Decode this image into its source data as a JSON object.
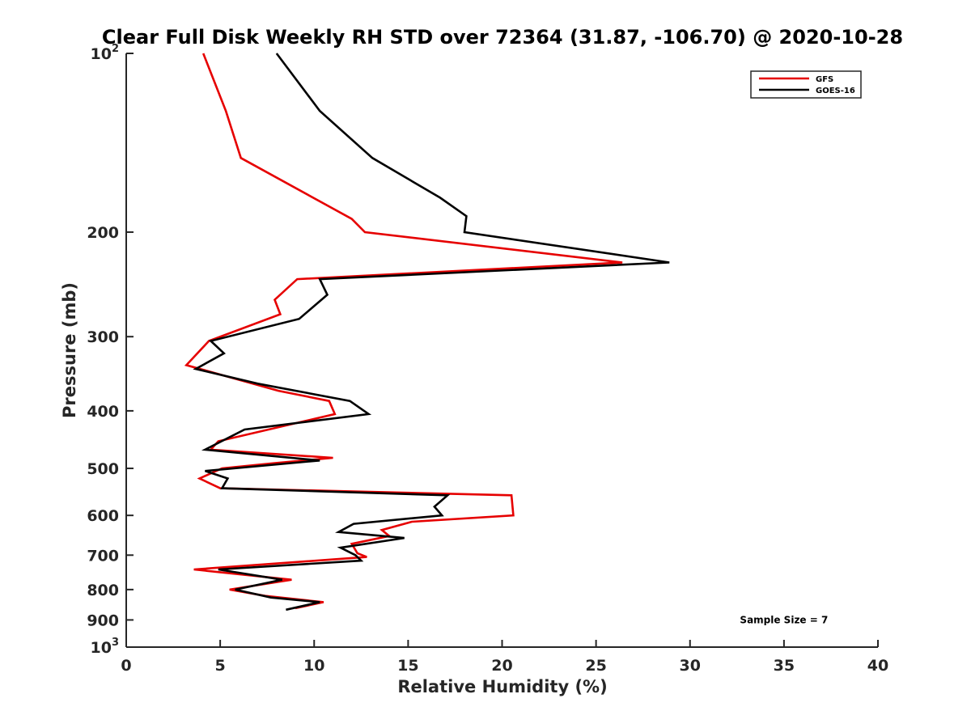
{
  "chart_data": {
    "type": "line",
    "title": "Clear Full Disk Weekly RH STD over 72364 (31.87, -106.70) @ 2020-10-28",
    "xlabel": "Relative Humidity (%)",
    "ylabel": "Pressure (mb)",
    "xlim": [
      0,
      40
    ],
    "ylim": [
      1000,
      100
    ],
    "yscale": "log",
    "y_reversed": true,
    "grid": false,
    "legend_position": "top-right",
    "x_ticks": [
      {
        "label": "0",
        "value": 0
      },
      {
        "label": "5",
        "value": 5
      },
      {
        "label": "10",
        "value": 10
      },
      {
        "label": "15",
        "value": 15
      },
      {
        "label": "20",
        "value": 20
      },
      {
        "label": "25",
        "value": 25
      },
      {
        "label": "30",
        "value": 30
      },
      {
        "label": "35",
        "value": 35
      },
      {
        "label": "40",
        "value": 40
      }
    ],
    "y_ticks": [
      {
        "base": "10",
        "sup": "2",
        "value": 100
      },
      {
        "base": "200",
        "sup": "",
        "value": 200
      },
      {
        "base": "300",
        "sup": "",
        "value": 300
      },
      {
        "base": "400",
        "sup": "",
        "value": 400
      },
      {
        "base": "500",
        "sup": "",
        "value": 500
      },
      {
        "base": "600",
        "sup": "",
        "value": 600
      },
      {
        "base": "700",
        "sup": "",
        "value": 700
      },
      {
        "base": "800",
        "sup": "",
        "value": 800
      },
      {
        "base": "900",
        "sup": "",
        "value": 900
      },
      {
        "base": "10",
        "sup": "3",
        "value": 1000
      }
    ],
    "series": [
      {
        "name": "GFS",
        "color": "#e60000",
        "points": [
          [
            4.1,
            100
          ],
          [
            5.3,
            125
          ],
          [
            6.1,
            150
          ],
          [
            12.0,
            190
          ],
          [
            12.7,
            200
          ],
          [
            26.4,
            225
          ],
          [
            9.1,
            240
          ],
          [
            7.9,
            260
          ],
          [
            8.2,
            275
          ],
          [
            4.4,
            305
          ],
          [
            3.2,
            335
          ],
          [
            8.1,
            370
          ],
          [
            10.8,
            385
          ],
          [
            11.1,
            405
          ],
          [
            4.9,
            450
          ],
          [
            4.5,
            465
          ],
          [
            11.0,
            480
          ],
          [
            7.9,
            490
          ],
          [
            5.1,
            500
          ],
          [
            3.9,
            520
          ],
          [
            5.0,
            540
          ],
          [
            20.5,
            555
          ],
          [
            20.6,
            600
          ],
          [
            15.2,
            615
          ],
          [
            13.6,
            635
          ],
          [
            14.0,
            650
          ],
          [
            12.0,
            670
          ],
          [
            12.3,
            695
          ],
          [
            12.8,
            705
          ],
          [
            3.6,
            740
          ],
          [
            8.8,
            770
          ],
          [
            5.5,
            800
          ],
          [
            7.4,
            820
          ],
          [
            10.5,
            840
          ],
          [
            9.0,
            860
          ]
        ]
      },
      {
        "name": "GOES-16",
        "color": "#000000",
        "points": [
          [
            8.0,
            100
          ],
          [
            10.3,
            125
          ],
          [
            13.1,
            150
          ],
          [
            16.7,
            175
          ],
          [
            18.1,
            188
          ],
          [
            18.0,
            200
          ],
          [
            28.9,
            225
          ],
          [
            10.3,
            240
          ],
          [
            10.7,
            255
          ],
          [
            9.2,
            280
          ],
          [
            4.5,
            305
          ],
          [
            5.2,
            320
          ],
          [
            3.7,
            340
          ],
          [
            7.0,
            360
          ],
          [
            11.9,
            385
          ],
          [
            12.9,
            405
          ],
          [
            6.3,
            430
          ],
          [
            4.2,
            465
          ],
          [
            10.3,
            485
          ],
          [
            4.2,
            505
          ],
          [
            5.4,
            520
          ],
          [
            5.1,
            540
          ],
          [
            17.1,
            555
          ],
          [
            16.4,
            580
          ],
          [
            16.8,
            600
          ],
          [
            12.1,
            620
          ],
          [
            11.3,
            640
          ],
          [
            14.8,
            655
          ],
          [
            11.4,
            680
          ],
          [
            12.2,
            700
          ],
          [
            12.5,
            715
          ],
          [
            4.9,
            740
          ],
          [
            8.3,
            770
          ],
          [
            5.8,
            800
          ],
          [
            7.7,
            825
          ],
          [
            10.3,
            840
          ],
          [
            8.5,
            865
          ]
        ]
      }
    ],
    "annotations": [
      {
        "text": "Sample Size = 7",
        "x": 35,
        "y": 900
      }
    ]
  }
}
